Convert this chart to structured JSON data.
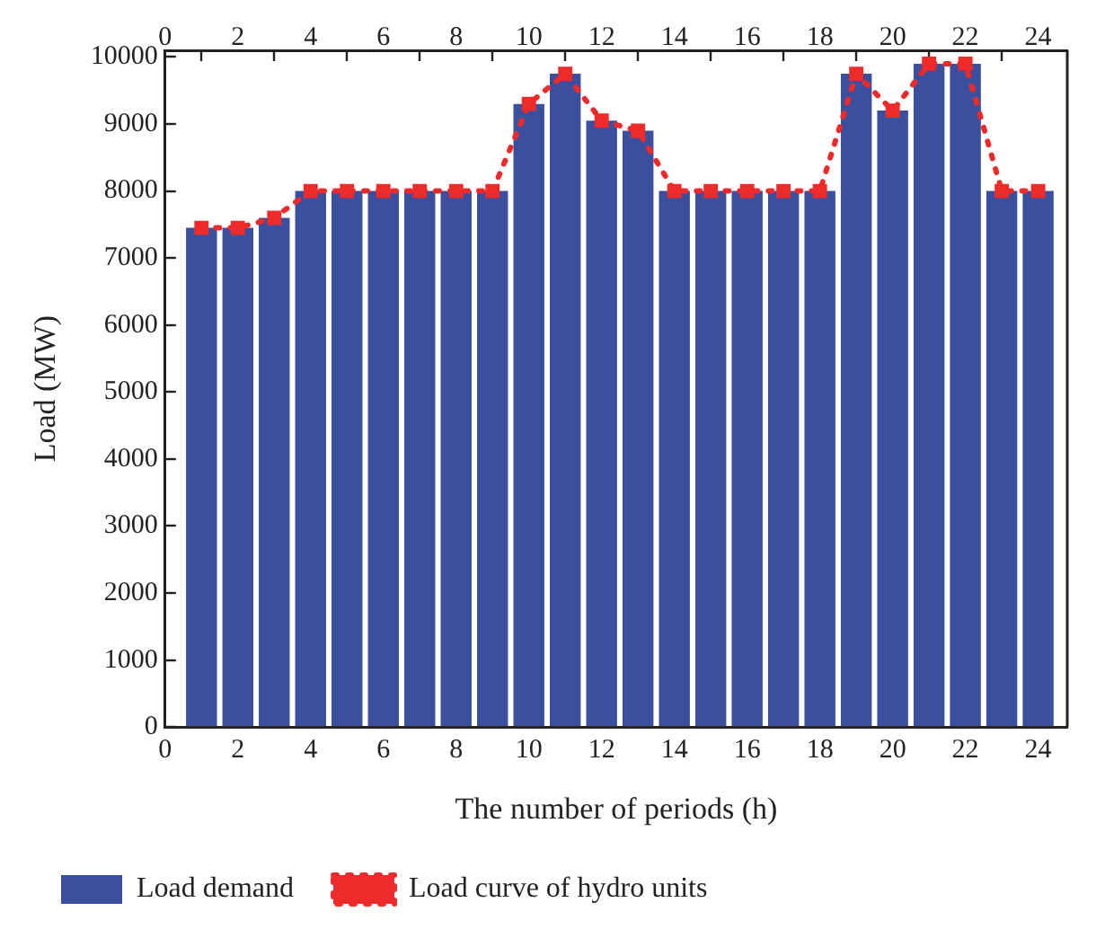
{
  "chart_data": {
    "type": "bar",
    "xlabel": "The number of periods (h)",
    "ylabel": "Load (MW)",
    "x": [
      1,
      2,
      3,
      4,
      5,
      6,
      7,
      8,
      9,
      10,
      11,
      12,
      13,
      14,
      15,
      16,
      17,
      18,
      19,
      20,
      21,
      22,
      23,
      24
    ],
    "series": [
      {
        "name": "Load demand",
        "type": "bar",
        "color": "#3a4f9e",
        "values": [
          7450,
          7450,
          7600,
          8000,
          8000,
          8000,
          8000,
          8000,
          8000,
          9300,
          9750,
          9050,
          8900,
          8000,
          8000,
          8000,
          8000,
          8000,
          9750,
          9200,
          9900,
          9900,
          8000,
          8000
        ]
      },
      {
        "name": "Load curve of hydro units",
        "type": "line",
        "color": "#ee2a2a",
        "marker": "square",
        "line_style": "dotted",
        "values": [
          7450,
          7450,
          7600,
          8000,
          8000,
          8000,
          8000,
          8000,
          8000,
          9300,
          9750,
          9050,
          8900,
          8000,
          8000,
          8000,
          8000,
          8000,
          9750,
          9200,
          9900,
          9900,
          8000,
          8000
        ]
      }
    ],
    "xlim": [
      0,
      24.8
    ],
    "xticks": [
      0,
      2,
      4,
      6,
      8,
      10,
      12,
      14,
      16,
      18,
      20,
      22,
      24
    ],
    "x2lim": [
      0,
      24.8
    ],
    "x2ticks": [
      0,
      2,
      4,
      6,
      8,
      10,
      12,
      14,
      16,
      18,
      20,
      22,
      24
    ],
    "ylim": [
      0,
      10100
    ],
    "yticks": [
      0,
      1000,
      2000,
      3000,
      4000,
      5000,
      6000,
      7000,
      8000,
      9000,
      10000
    ],
    "grid": false,
    "legend": "bottom"
  }
}
